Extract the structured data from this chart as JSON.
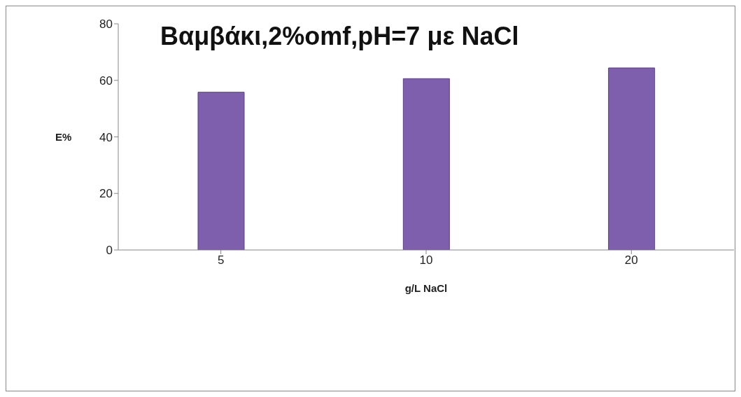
{
  "chart_data": {
    "type": "bar",
    "title": "Βαμβάκι,2%omf,pH=7 με NaCl",
    "xlabel": "g/L NaCl",
    "ylabel": "E%",
    "categories": [
      "5",
      "10",
      "20"
    ],
    "values": [
      55.8,
      60.6,
      64.4
    ],
    "color": "#7e5fae",
    "ylim": [
      0,
      80
    ],
    "yticks": [
      0,
      20,
      40,
      60,
      80
    ],
    "grid": false,
    "legend": false
  }
}
